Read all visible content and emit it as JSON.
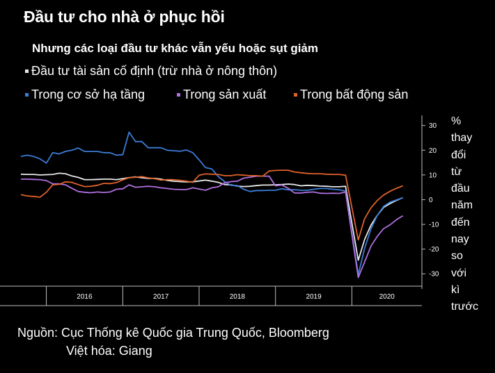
{
  "title": "Đầu tư cho nhà ở phục hồi",
  "subtitle": "Nhưng các loại đầu tư khác vẫn yếu hoặc sụt giảm",
  "source": "Nguồn: Cục Thống kê Quốc gia Trung Quốc, Bloomberg",
  "credit": "Việt hóa: Giang",
  "unit_words": [
    "%",
    "thay",
    "đổi",
    "từ",
    "đầu",
    "năm",
    "đến",
    "nay",
    "so",
    "với",
    "kì",
    "trước"
  ],
  "chart_data": {
    "type": "line",
    "ylim": [
      -35,
      33
    ],
    "yticks": [
      30,
      20,
      10,
      0,
      -10,
      -20,
      -30
    ],
    "year_labels": [
      "2016",
      "2017",
      "2018",
      "2019",
      "2020"
    ],
    "x_range": [
      "2015-09",
      "2020-12"
    ],
    "grid": false,
    "legend_placement": "top-left",
    "series": [
      {
        "name": "Đầu tư tài sản cố định (trừ nhà ở nông thôn)",
        "color": "#e8e8e8",
        "points": [
          [
            "2015-09",
            10.3
          ],
          [
            "2015-10",
            10.2
          ],
          [
            "2015-11",
            10.2
          ],
          [
            "2015-12",
            10.0
          ],
          [
            "2016-02",
            10.2
          ],
          [
            "2016-03",
            10.7
          ],
          [
            "2016-04",
            10.5
          ],
          [
            "2016-05",
            9.6
          ],
          [
            "2016-06",
            9.0
          ],
          [
            "2016-07",
            8.1
          ],
          [
            "2016-08",
            8.1
          ],
          [
            "2016-09",
            8.2
          ],
          [
            "2016-10",
            8.3
          ],
          [
            "2016-11",
            8.3
          ],
          [
            "2016-12",
            8.1
          ],
          [
            "2017-02",
            8.9
          ],
          [
            "2017-03",
            9.2
          ],
          [
            "2017-04",
            8.9
          ],
          [
            "2017-05",
            8.6
          ],
          [
            "2017-06",
            8.6
          ],
          [
            "2017-07",
            8.3
          ],
          [
            "2017-08",
            7.8
          ],
          [
            "2017-09",
            7.5
          ],
          [
            "2017-10",
            7.3
          ],
          [
            "2017-11",
            7.2
          ],
          [
            "2017-12",
            7.2
          ],
          [
            "2018-02",
            7.9
          ],
          [
            "2018-03",
            7.5
          ],
          [
            "2018-04",
            7.0
          ],
          [
            "2018-05",
            6.1
          ],
          [
            "2018-06",
            6.0
          ],
          [
            "2018-07",
            5.5
          ],
          [
            "2018-08",
            5.3
          ],
          [
            "2018-09",
            5.4
          ],
          [
            "2018-10",
            5.7
          ],
          [
            "2018-11",
            5.9
          ],
          [
            "2018-12",
            5.9
          ],
          [
            "2019-02",
            6.1
          ],
          [
            "2019-03",
            6.3
          ],
          [
            "2019-04",
            6.1
          ],
          [
            "2019-05",
            5.6
          ],
          [
            "2019-06",
            5.8
          ],
          [
            "2019-07",
            5.7
          ],
          [
            "2019-08",
            5.5
          ],
          [
            "2019-09",
            5.4
          ],
          [
            "2019-10",
            5.2
          ],
          [
            "2019-11",
            5.2
          ],
          [
            "2019-12",
            5.4
          ],
          [
            "2020-02",
            -24.5
          ],
          [
            "2020-03",
            -16.1
          ],
          [
            "2020-04",
            -10.3
          ],
          [
            "2020-05",
            -6.3
          ],
          [
            "2020-06",
            -3.1
          ],
          [
            "2020-07",
            -1.6
          ],
          [
            "2020-08",
            -0.3
          ],
          [
            "2020-09",
            0.8
          ]
        ]
      },
      {
        "name": "Trong cơ sở hạ tầng",
        "color": "#3b7dd8",
        "points": [
          [
            "2015-09",
            17.5
          ],
          [
            "2015-10",
            18.0
          ],
          [
            "2015-11",
            17.5
          ],
          [
            "2015-12",
            16.5
          ],
          [
            "2016-01",
            14.8
          ],
          [
            "2016-02",
            19.0
          ],
          [
            "2016-03",
            18.5
          ],
          [
            "2016-04",
            19.5
          ],
          [
            "2016-05",
            20.0
          ],
          [
            "2016-06",
            20.9
          ],
          [
            "2016-07",
            19.5
          ],
          [
            "2016-08",
            19.5
          ],
          [
            "2016-09",
            19.5
          ],
          [
            "2016-10",
            19.0
          ],
          [
            "2016-11",
            19.0
          ],
          [
            "2016-12",
            18.0
          ],
          [
            "2017-01",
            18.2
          ],
          [
            "2017-02",
            27.3
          ],
          [
            "2017-03",
            23.5
          ],
          [
            "2017-04",
            23.5
          ],
          [
            "2017-05",
            21.0
          ],
          [
            "2017-06",
            21.0
          ],
          [
            "2017-07",
            21.0
          ],
          [
            "2017-08",
            20.0
          ],
          [
            "2017-09",
            19.8
          ],
          [
            "2017-10",
            19.6
          ],
          [
            "2017-11",
            20.1
          ],
          [
            "2017-12",
            19.0
          ],
          [
            "2018-01",
            16.1
          ],
          [
            "2018-02",
            13.0
          ],
          [
            "2018-03",
            12.4
          ],
          [
            "2018-04",
            9.4
          ],
          [
            "2018-05",
            7.3
          ],
          [
            "2018-06",
            5.8
          ],
          [
            "2018-07",
            5.7
          ],
          [
            "2018-08",
            4.2
          ],
          [
            "2018-09",
            3.3
          ],
          [
            "2018-10",
            3.7
          ],
          [
            "2018-11",
            3.7
          ],
          [
            "2018-12",
            3.8
          ],
          [
            "2019-01",
            3.8
          ],
          [
            "2019-02",
            4.4
          ],
          [
            "2019-03",
            4.0
          ],
          [
            "2019-04",
            4.0
          ],
          [
            "2019-05",
            3.8
          ],
          [
            "2019-06",
            3.8
          ],
          [
            "2019-07",
            4.2
          ],
          [
            "2019-08",
            4.5
          ],
          [
            "2019-09",
            4.5
          ],
          [
            "2019-10",
            4.2
          ],
          [
            "2019-11",
            4.0
          ],
          [
            "2019-12",
            3.5
          ],
          [
            "2020-02",
            -30.3
          ],
          [
            "2020-03",
            -19.7
          ],
          [
            "2020-04",
            -11.8
          ],
          [
            "2020-05",
            -6.3
          ],
          [
            "2020-06",
            -2.7
          ],
          [
            "2020-07",
            -1.0
          ],
          [
            "2020-08",
            -0.1
          ],
          [
            "2020-09",
            0.8
          ]
        ]
      },
      {
        "name": "Trong sản xuất",
        "color": "#b070e0",
        "points": [
          [
            "2015-09",
            8.3
          ],
          [
            "2015-10",
            8.3
          ],
          [
            "2015-11",
            8.2
          ],
          [
            "2015-12",
            8.1
          ],
          [
            "2016-01",
            7.7
          ],
          [
            "2016-02",
            6.4
          ],
          [
            "2016-03",
            6.4
          ],
          [
            "2016-04",
            6.0
          ],
          [
            "2016-05",
            4.6
          ],
          [
            "2016-06",
            3.3
          ],
          [
            "2016-07",
            3.0
          ],
          [
            "2016-08",
            2.8
          ],
          [
            "2016-09",
            3.1
          ],
          [
            "2016-10",
            2.9
          ],
          [
            "2016-11",
            3.1
          ],
          [
            "2016-12",
            4.2
          ],
          [
            "2017-01",
            4.4
          ],
          [
            "2017-02",
            6.0
          ],
          [
            "2017-03",
            5.0
          ],
          [
            "2017-04",
            5.2
          ],
          [
            "2017-05",
            5.4
          ],
          [
            "2017-06",
            5.2
          ],
          [
            "2017-07",
            4.8
          ],
          [
            "2017-08",
            4.5
          ],
          [
            "2017-09",
            4.2
          ],
          [
            "2017-10",
            4.1
          ],
          [
            "2017-11",
            4.1
          ],
          [
            "2017-12",
            4.8
          ],
          [
            "2018-01",
            4.3
          ],
          [
            "2018-02",
            3.8
          ],
          [
            "2018-03",
            4.8
          ],
          [
            "2018-04",
            5.2
          ],
          [
            "2018-05",
            6.8
          ],
          [
            "2018-06",
            7.3
          ],
          [
            "2018-07",
            7.5
          ],
          [
            "2018-08",
            8.7
          ],
          [
            "2018-09",
            9.1
          ],
          [
            "2018-10",
            9.5
          ],
          [
            "2018-11",
            9.5
          ],
          [
            "2018-12",
            9.5
          ],
          [
            "2019-01",
            5.6
          ],
          [
            "2019-02",
            5.9
          ],
          [
            "2019-03",
            4.6
          ],
          [
            "2019-04",
            2.7
          ],
          [
            "2019-05",
            2.7
          ],
          [
            "2019-06",
            3.0
          ],
          [
            "2019-07",
            3.1
          ],
          [
            "2019-08",
            2.6
          ],
          [
            "2019-09",
            2.5
          ],
          [
            "2019-10",
            2.6
          ],
          [
            "2019-11",
            2.5
          ],
          [
            "2019-12",
            3.1
          ],
          [
            "2020-02",
            -31.5
          ],
          [
            "2020-03",
            -25.2
          ],
          [
            "2020-04",
            -18.8
          ],
          [
            "2020-05",
            -14.8
          ],
          [
            "2020-06",
            -11.7
          ],
          [
            "2020-07",
            -10.2
          ],
          [
            "2020-08",
            -8.1
          ],
          [
            "2020-09",
            -6.5
          ]
        ]
      },
      {
        "name": "Trong bất động sản",
        "color": "#e0622a",
        "points": [
          [
            "2015-09",
            2.0
          ],
          [
            "2015-10",
            1.5
          ],
          [
            "2015-11",
            1.3
          ],
          [
            "2015-12",
            1.0
          ],
          [
            "2016-01",
            3.0
          ],
          [
            "2016-02",
            6.0
          ],
          [
            "2016-03",
            6.2
          ],
          [
            "2016-04",
            7.2
          ],
          [
            "2016-05",
            7.0
          ],
          [
            "2016-06",
            6.1
          ],
          [
            "2016-07",
            5.3
          ],
          [
            "2016-08",
            5.4
          ],
          [
            "2016-09",
            5.8
          ],
          [
            "2016-10",
            6.6
          ],
          [
            "2016-11",
            6.5
          ],
          [
            "2016-12",
            6.9
          ],
          [
            "2017-01",
            8.0
          ],
          [
            "2017-02",
            8.9
          ],
          [
            "2017-03",
            9.1
          ],
          [
            "2017-04",
            9.3
          ],
          [
            "2017-05",
            8.8
          ],
          [
            "2017-06",
            8.5
          ],
          [
            "2017-07",
            7.9
          ],
          [
            "2017-08",
            8.1
          ],
          [
            "2017-09",
            8.1
          ],
          [
            "2017-10",
            7.8
          ],
          [
            "2017-11",
            7.5
          ],
          [
            "2017-12",
            7.0
          ],
          [
            "2018-01",
            9.9
          ],
          [
            "2018-02",
            10.4
          ],
          [
            "2018-03",
            10.3
          ],
          [
            "2018-04",
            10.2
          ],
          [
            "2018-05",
            9.7
          ],
          [
            "2018-06",
            9.7
          ],
          [
            "2018-07",
            10.1
          ],
          [
            "2018-08",
            9.9
          ],
          [
            "2018-09",
            9.7
          ],
          [
            "2018-10",
            9.7
          ],
          [
            "2018-11",
            9.5
          ],
          [
            "2018-12",
            11.6
          ],
          [
            "2019-01",
            11.8
          ],
          [
            "2019-02",
            11.9
          ],
          [
            "2019-03",
            11.9
          ],
          [
            "2019-04",
            11.2
          ],
          [
            "2019-05",
            10.9
          ],
          [
            "2019-06",
            10.6
          ],
          [
            "2019-07",
            10.5
          ],
          [
            "2019-08",
            10.5
          ],
          [
            "2019-09",
            10.3
          ],
          [
            "2019-10",
            10.2
          ],
          [
            "2019-11",
            10.2
          ],
          [
            "2019-12",
            9.9
          ],
          [
            "2020-02",
            -16.3
          ],
          [
            "2020-03",
            -7.7
          ],
          [
            "2020-04",
            -3.3
          ],
          [
            "2020-05",
            -0.3
          ],
          [
            "2020-06",
            1.9
          ],
          [
            "2020-07",
            3.4
          ],
          [
            "2020-08",
            4.6
          ],
          [
            "2020-09",
            5.6
          ]
        ]
      }
    ]
  }
}
